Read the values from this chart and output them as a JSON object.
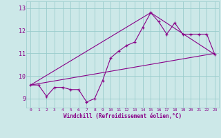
{
  "xlabel": "Windchill (Refroidissement éolien,°C)",
  "bg_color": "#cce8e8",
  "grid_color": "#99cccc",
  "line_color": "#880088",
  "xlim": [
    -0.5,
    23.5
  ],
  "ylim": [
    8.6,
    13.3
  ],
  "yticks": [
    9,
    10,
    11,
    12,
    13
  ],
  "xticks": [
    0,
    1,
    2,
    3,
    4,
    5,
    6,
    7,
    8,
    9,
    10,
    11,
    12,
    13,
    14,
    15,
    16,
    17,
    18,
    19,
    20,
    21,
    22,
    23
  ],
  "main_x": [
    0,
    1,
    2,
    3,
    4,
    5,
    6,
    7,
    8,
    9,
    10,
    11,
    12,
    13,
    14,
    15,
    16,
    17,
    18,
    19,
    20,
    21,
    22,
    23
  ],
  "main_y": [
    9.6,
    9.6,
    9.1,
    9.5,
    9.5,
    9.4,
    9.4,
    8.85,
    9.0,
    9.8,
    10.8,
    11.1,
    11.35,
    11.5,
    12.15,
    12.8,
    12.4,
    11.85,
    12.35,
    11.85,
    11.85,
    11.85,
    11.85,
    10.95
  ],
  "line1_x": [
    0,
    23
  ],
  "line1_y": [
    9.6,
    11.0
  ],
  "line2_x": [
    0,
    15,
    23
  ],
  "line2_y": [
    9.6,
    12.8,
    10.95
  ]
}
